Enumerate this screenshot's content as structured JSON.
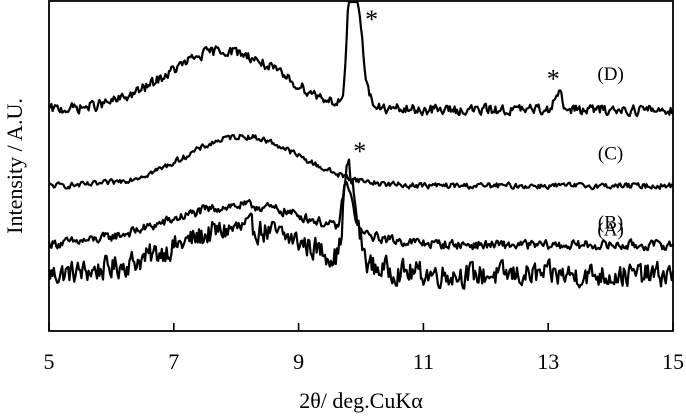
{
  "chart_data": {
    "type": "line",
    "title": "",
    "xlabel": "2θ/ deg.CuKα",
    "ylabel": "Intensity / A.U.",
    "xlim": [
      5,
      15
    ],
    "ylim": [
      0,
      100
    ],
    "xticks": [
      5,
      7,
      9,
      11,
      13,
      15
    ],
    "legend": "none",
    "grid": false,
    "series": [
      {
        "name": "(A)",
        "baseline": 17,
        "noise": 5,
        "features": [
          {
            "type": "broad",
            "center": 8.1,
            "height": 14,
            "width": 1.1
          },
          {
            "type": "peak",
            "center": 9.78,
            "height": 28,
            "width": 0.06,
            "tail": true
          }
        ]
      },
      {
        "name": "(B)",
        "baseline": 26,
        "noise": 2,
        "features": [
          {
            "type": "broad",
            "center": 8.1,
            "height": 12,
            "width": 1.2
          },
          {
            "type": "peak",
            "center": 9.75,
            "height": 14,
            "width": 0.05,
            "tail": true
          }
        ]
      },
      {
        "name": "(C)",
        "baseline": 44,
        "noise": 1.2,
        "features": [
          {
            "type": "broad",
            "center": 8.1,
            "height": 15,
            "width": 0.9
          }
        ]
      },
      {
        "name": "(D)",
        "baseline": 67,
        "noise": 2.2,
        "features": [
          {
            "type": "broad",
            "center": 7.8,
            "height": 18,
            "width": 0.9
          },
          {
            "type": "peak",
            "center": 9.85,
            "height": 45,
            "width": 0.06,
            "tail": true
          },
          {
            "type": "peak",
            "center": 13.15,
            "height": 6,
            "width": 0.06
          }
        ]
      }
    ],
    "annotations": [
      {
        "text": "*",
        "x": 10.17,
        "y": 96
      },
      {
        "text": "*",
        "x": 13.08,
        "y": 78
      },
      {
        "text": "*",
        "x": 9.98,
        "y": 56
      }
    ],
    "series_label_x": 14.0
  }
}
